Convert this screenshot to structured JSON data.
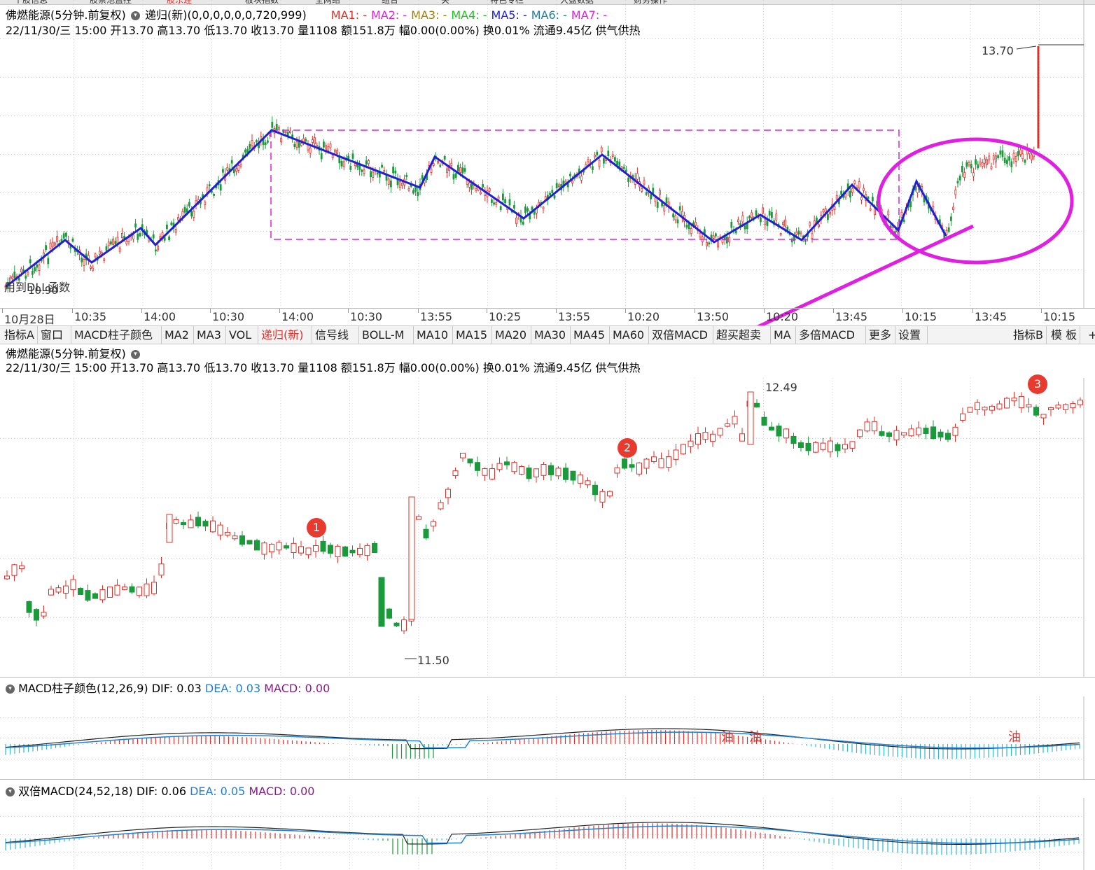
{
  "tabs": [
    "个股信息",
    "股票池监控",
    "股东连",
    "板块指数",
    "全网络",
    "组合",
    "关",
    "特色专栏",
    "大盘数据",
    "财务操作"
  ],
  "active_tab_index": 2,
  "top_panel": {
    "stock_title": "佛燃能源(5分钟.前复权)",
    "formula": "递归(新)(0,0,0,0,0,0,720,999)",
    "ma_legend": [
      "MA1: -",
      "MA2: -",
      "MA3: -",
      "MA4: -",
      "MA5: -",
      "MA6: -",
      "MA7: -"
    ],
    "ma_colors": [
      "#e0302a",
      "#e020e0",
      "#a08000",
      "#20c020",
      "#2020e0",
      "#2080a0",
      "#e020e0"
    ],
    "quote": "22/11/30/三 15:00 开13.70 高13.70 低13.70 收13.70 量1108 额151.8万 幅0.00(0.00%) 换0.01% 流通9.45亿 供气供热",
    "high_label": "13.70",
    "low_label": "10.90",
    "dll_label": "用到DLL函数"
  },
  "time_axis": [
    "10月28日",
    "10:35",
    "14:00",
    "10:30",
    "14:00",
    "10:30",
    "13:55",
    "10:25",
    "13:55",
    "10:20",
    "13:50",
    "10:20",
    "13:45",
    "10:15",
    "13:45",
    "10:15"
  ],
  "indicator_bar": {
    "buttons": [
      "指标A",
      "窗口",
      "MACD柱子颜色",
      "MA2",
      "MA3",
      "VOL",
      "递归(新)",
      "信号线",
      "BOLL-M",
      "MA10",
      "MA15",
      "MA20",
      "MA30",
      "MA45",
      "MA60",
      "双倍MACD",
      "超买超卖",
      "MA",
      "多倍MACD",
      "更多",
      "设置"
    ],
    "active": "递归(新)",
    "right_buttons": [
      "指标B",
      "模 板",
      "+"
    ]
  },
  "main_panel": {
    "stock_title": "佛燃能源(5分钟.前复权)",
    "quote": "22/11/30/三 15:00 开13.70 高13.70 低13.70 收13.70 量1108 额151.8万 幅0.00(0.00%) 换0.01% 流通9.45亿 供气供热",
    "high_label": "12.49",
    "low_label": "11.50",
    "badges": [
      "1",
      "2",
      "3"
    ]
  },
  "macd_panel": {
    "name": "MACD柱子颜色(12,26,9)",
    "dif_label": "DIF: 0.03",
    "dea_label": "DEA: 0.03",
    "macd_label": "MACD: 0.00",
    "signal_marks": [
      "油",
      "油",
      "油"
    ]
  },
  "dmacd_panel": {
    "name": "双倍MACD(24,52,18)",
    "dif_label": "DIF: 0.06",
    "dea_label": "DEA: 0.05",
    "macd_label": "MACD: 0.00"
  },
  "colors": {
    "up": "#e0302a",
    "down": "#1a9a3a",
    "zigzag": "#1f1fd6",
    "highlight": "#e020e0",
    "dea": "#1e7fd6",
    "macd_purple": "#8b1a8b"
  }
}
